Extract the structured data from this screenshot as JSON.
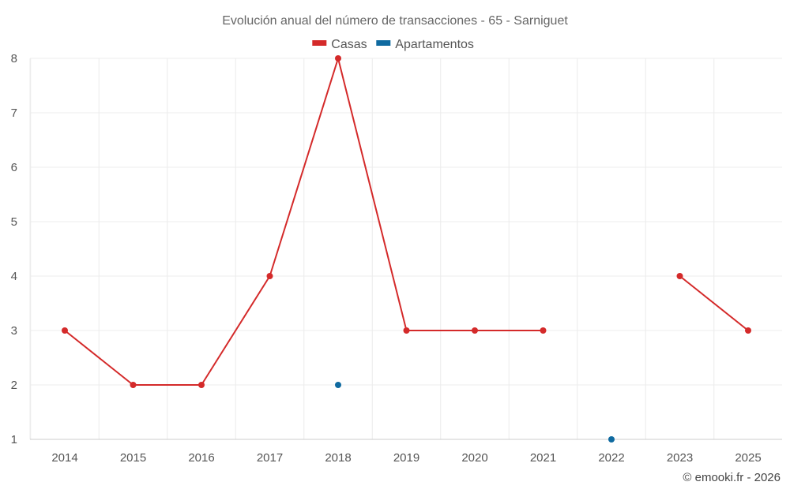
{
  "chart_data": {
    "type": "line",
    "title": "Evolución anual del número de transacciones - 65 - Sarniguet",
    "xlabel": "",
    "ylabel": "",
    "categories": [
      "2014",
      "2015",
      "2016",
      "2017",
      "2018",
      "2019",
      "2020",
      "2021",
      "2022",
      "2023",
      "2025"
    ],
    "ylim": [
      1,
      8
    ],
    "yticks": [
      1,
      2,
      3,
      4,
      5,
      6,
      7,
      8
    ],
    "grid": true,
    "legend_position": "top-center",
    "series": [
      {
        "name": "Casas",
        "color": "#d42a2a",
        "values": [
          3,
          2,
          2,
          4,
          8,
          3,
          3,
          3,
          null,
          4,
          3
        ]
      },
      {
        "name": "Apartamentos",
        "color": "#0f6aa0",
        "values": [
          null,
          null,
          null,
          null,
          2,
          null,
          null,
          null,
          1,
          null,
          null
        ]
      }
    ],
    "credit": "© emooki.fr - 2026"
  }
}
